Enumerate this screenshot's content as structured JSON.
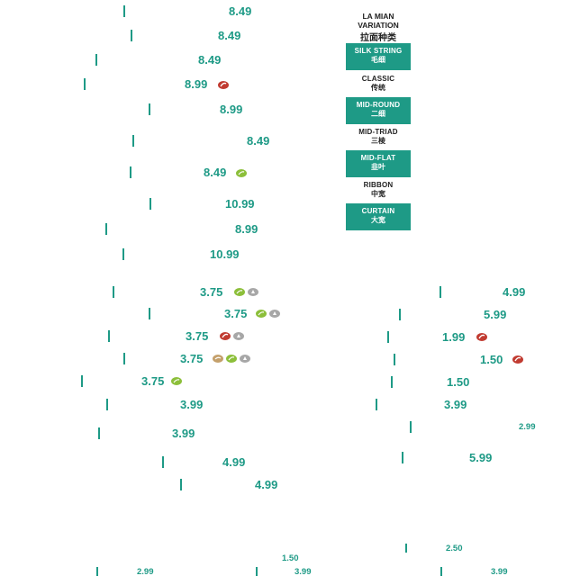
{
  "legend": {
    "title_line1": "LA MIAN",
    "title_line2": "VARIATION",
    "title_zh": "拉面种类",
    "items": [
      {
        "en": "SILK STRING",
        "zh": "毛细",
        "highlighted": true
      },
      {
        "en": "CLASSIC",
        "zh": "传统",
        "highlighted": false
      },
      {
        "en": "MID-ROUND",
        "zh": "二细",
        "highlighted": true
      },
      {
        "en": "MID-TRIAD",
        "zh": "三棱",
        "highlighted": false
      },
      {
        "en": "MID-FLAT",
        "zh": "韭叶",
        "highlighted": true
      },
      {
        "en": "RIBBON",
        "zh": "中宽",
        "highlighted": false
      },
      {
        "en": "CURTAIN",
        "zh": "大宽",
        "highlighted": true
      }
    ]
  },
  "price_rows": [
    {
      "price": "8.49",
      "icons": []
    },
    {
      "price": "8.49",
      "icons": []
    },
    {
      "price": "8.49",
      "icons": []
    },
    {
      "price": "8.99",
      "icons": [
        "chili-icon"
      ]
    },
    {
      "price": "8.99",
      "icons": []
    },
    {
      "price": "8.49",
      "icons": []
    },
    {
      "price": "8.49",
      "icons": [
        "vegetable-icon"
      ]
    },
    {
      "price": "10.99",
      "icons": []
    },
    {
      "price": "8.99",
      "icons": []
    },
    {
      "price": "10.99",
      "icons": []
    },
    {
      "price": "3.75",
      "icons": [
        "vegetable-icon",
        "shellfish-icon"
      ]
    },
    {
      "price": "3.75",
      "icons": [
        "vegetable-icon",
        "shellfish-icon"
      ]
    },
    {
      "price": "3.75",
      "icons": [
        "chili-icon",
        "shellfish-icon"
      ]
    },
    {
      "price": "3.75",
      "icons": [
        "nut-icon",
        "vegetable-icon",
        "shellfish-icon"
      ]
    },
    {
      "price": "3.75",
      "icons": [
        "vegetable-icon"
      ]
    },
    {
      "price": "3.99",
      "icons": []
    },
    {
      "price": "3.99",
      "icons": []
    },
    {
      "price": "4.99",
      "icons": []
    },
    {
      "price": "4.99",
      "icons": []
    },
    {
      "price": "4.99",
      "icons": []
    },
    {
      "price": "5.99",
      "icons": []
    },
    {
      "price": "1.99",
      "icons": [
        "chili-icon"
      ]
    },
    {
      "price": "1.50",
      "icons": [
        "chili-icon"
      ]
    },
    {
      "price": "1.50",
      "icons": []
    },
    {
      "price": "3.99",
      "icons": []
    },
    {
      "price": "2.99",
      "icons": []
    },
    {
      "price": "5.99",
      "icons": []
    },
    {
      "price": "2.50",
      "icons": []
    },
    {
      "price": "1.50",
      "icons": []
    },
    {
      "price": "2.99",
      "icons": []
    },
    {
      "price": "3.99",
      "icons": []
    },
    {
      "price": "3.99",
      "icons": []
    }
  ],
  "colors": {
    "accent_teal": "#1e9a86",
    "chili_red": "#c13b31",
    "veg_green": "#8cbf3a",
    "shell_grey": "#a7a7a7",
    "nut_tan": "#c4a06b"
  }
}
